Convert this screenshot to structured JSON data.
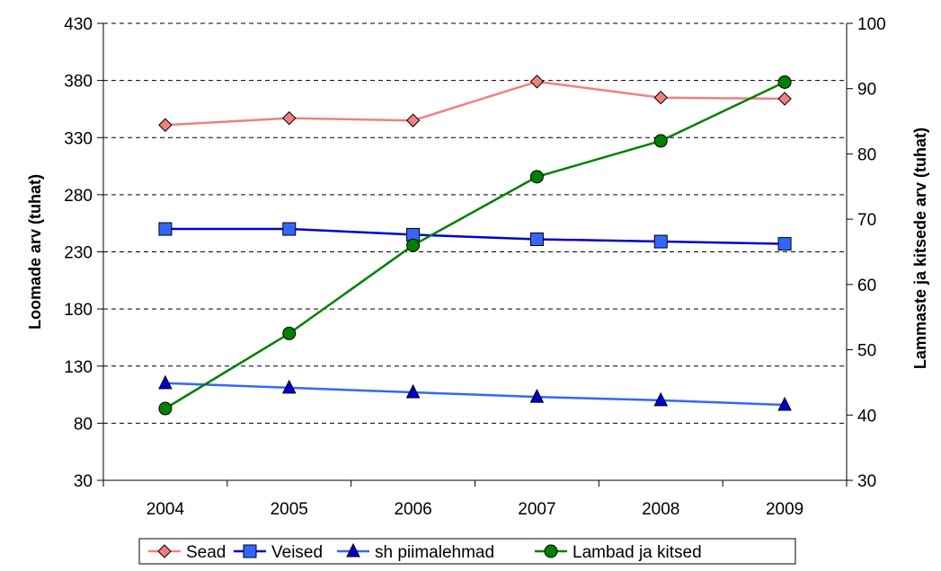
{
  "chart_data": {
    "type": "line",
    "categories": [
      "2004",
      "2005",
      "2006",
      "2007",
      "2008",
      "2009"
    ],
    "xlabel": "",
    "y_left": {
      "label": "Loomade arv (tuhat)",
      "range": [
        30,
        430
      ],
      "ticks": [
        "30",
        "80",
        "130",
        "180",
        "230",
        "280",
        "330",
        "380",
        "430"
      ]
    },
    "y_right": {
      "label": "Lammaste ja kitsede arv (tuhat)",
      "range": [
        30,
        100
      ],
      "ticks": [
        "30",
        "40",
        "50",
        "60",
        "70",
        "80",
        "90",
        "100"
      ]
    },
    "grid": "horizontal-dashed",
    "legend_position": "bottom",
    "series": [
      {
        "name": "Sead",
        "axis": "left",
        "marker": "diamond",
        "color": "#f08080",
        "values": [
          341,
          347,
          345,
          379,
          365,
          364
        ]
      },
      {
        "name": "Veised",
        "axis": "left",
        "marker": "square",
        "color": "#0000cc",
        "marker_color": "#3366ff",
        "values": [
          250,
          250,
          245,
          241,
          239,
          237
        ]
      },
      {
        "name": "sh piimalehmad",
        "axis": "left",
        "marker": "triangle",
        "color": "#3366ff",
        "marker_color": "#0000cc",
        "values": [
          115,
          111,
          107,
          103,
          100,
          96
        ]
      },
      {
        "name": "Lambad ja kitsed",
        "axis": "right",
        "marker": "circle",
        "color": "#008000",
        "marker_color": "#008000",
        "values": [
          41,
          52.5,
          66,
          76.5,
          82,
          91
        ]
      }
    ]
  }
}
